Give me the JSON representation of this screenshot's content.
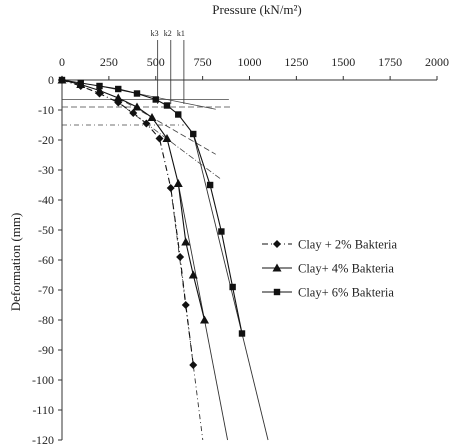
{
  "chart_data": {
    "type": "line",
    "x_axis": {
      "label": "Pressure (kN/m²)",
      "position": "top",
      "range": [
        0,
        2000
      ],
      "ticks": [
        "0",
        "250",
        "500",
        "750",
        "1000",
        "1250",
        "1500",
        "1750",
        "2000"
      ]
    },
    "y_axis": {
      "label": "Deformation (mm)",
      "range": [
        -120,
        0
      ],
      "ticks": [
        "0",
        "-10",
        "-20",
        "-30",
        "-40",
        "-50",
        "-60",
        "-70",
        "-80",
        "-90",
        "-100",
        "-110",
        "-120"
      ]
    },
    "grid": false,
    "legend_position": "center-right",
    "series": [
      {
        "name": "Clay + 2% Bakteria",
        "line_style": "dash-dot",
        "marker": "diamond",
        "x": [
          0,
          100,
          200,
          300,
          380,
          450,
          520,
          580,
          630,
          660,
          700
        ],
        "y": [
          0,
          -2,
          -4.5,
          -7.5,
          -11,
          -14.5,
          -19.5,
          -36,
          -59,
          -75,
          -95
        ]
      },
      {
        "name": "Clay+ 4% Bakteria",
        "line_style": "solid",
        "marker": "triangle",
        "x": [
          0,
          100,
          200,
          300,
          400,
          480,
          560,
          620,
          660,
          700,
          760
        ],
        "y": [
          0,
          -1.5,
          -3.5,
          -6,
          -9,
          -12.5,
          -19.5,
          -34.5,
          -54,
          -65,
          -80
        ]
      },
      {
        "name": "Clay+ 6% Bakteria",
        "line_style": "solid",
        "marker": "square",
        "x": [
          0,
          100,
          200,
          300,
          400,
          500,
          560,
          620,
          700,
          790,
          850,
          910,
          960
        ],
        "y": [
          0,
          -1,
          -2,
          -3,
          -4.5,
          -6.5,
          -8.5,
          -11.5,
          -18,
          -35,
          -50.5,
          -69,
          -84.5
        ]
      }
    ],
    "pressure_markers": [
      {
        "label": "k3",
        "x": 510
      },
      {
        "label": "k2",
        "x": 580
      },
      {
        "label": "k1",
        "x": 650
      }
    ]
  }
}
